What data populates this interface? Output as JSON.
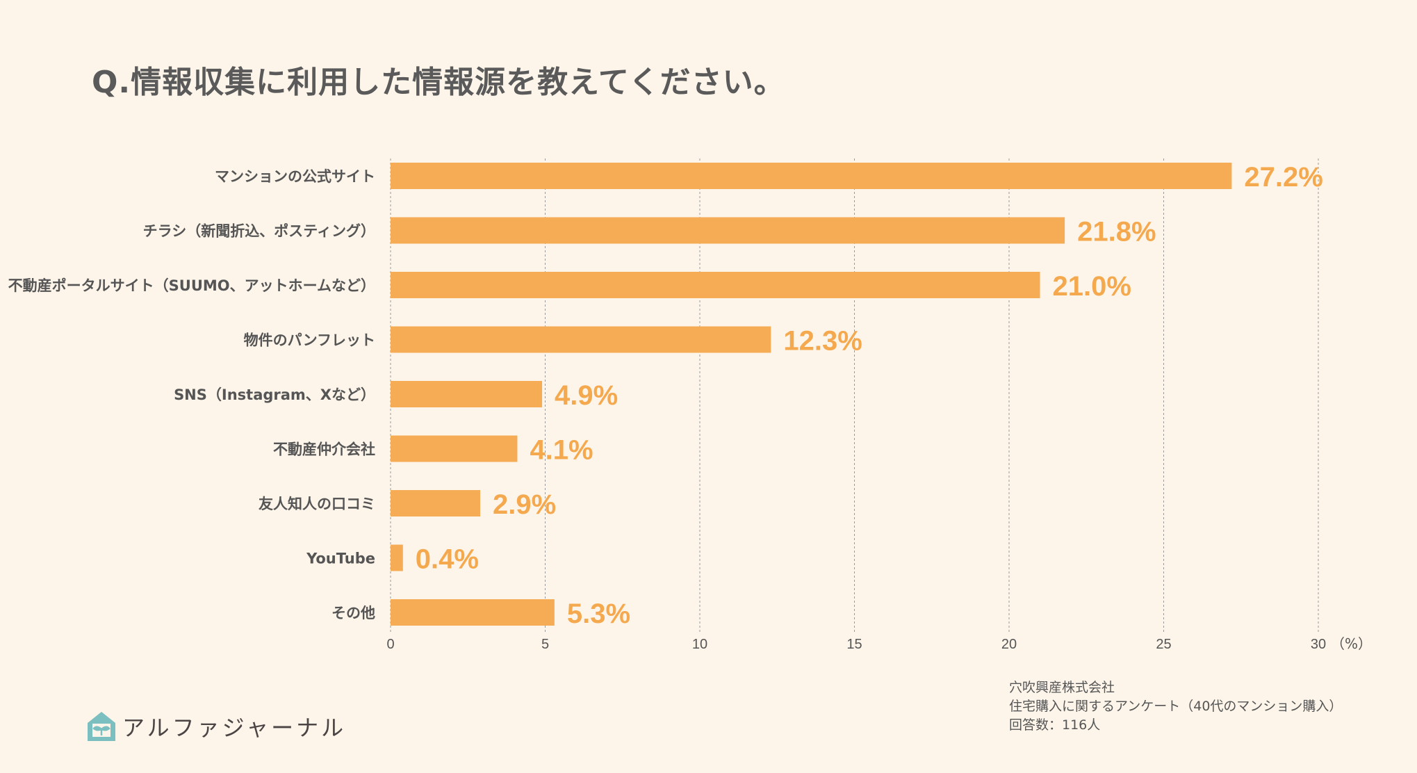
{
  "title": "Q.情報収集に利用した情報源を教えてください。",
  "chart_data": {
    "type": "bar",
    "orientation": "horizontal",
    "categories": [
      "マンションの公式サイト",
      "チラシ（新聞折込、ポスティング）",
      "不動産ポータルサイト（SUUMO、アットホームなど）",
      "物件のパンフレット",
      "SNS（Instagram、Xなど）",
      "不動産仲介会社",
      "友人知人の口コミ",
      "YouTube",
      "その他"
    ],
    "values": [
      27.2,
      21.8,
      21.0,
      12.3,
      4.9,
      4.1,
      2.9,
      0.4,
      5.3
    ],
    "data_labels": [
      "27.2%",
      "21.8%",
      "21.0%",
      "12.3%",
      "4.9%",
      "4.1%",
      "2.9%",
      "0.4%",
      "5.3%"
    ],
    "xlim": [
      0,
      30
    ],
    "ticks": [
      "0",
      "5",
      "10",
      "15",
      "20",
      "25",
      "30"
    ],
    "xunit": "（%）",
    "grid": true,
    "bar_color": "#F5AC55",
    "label_color": "#F5A94F"
  },
  "source": {
    "line1": "穴吹興産株式会社",
    "line2": "住宅購入に関するアンケート（40代のマンション購入）",
    "line3": "回答数：116人"
  },
  "logo": {
    "text": "アルファジャーナル",
    "icon": "house-sprout-icon",
    "color": "#7BBFC0"
  }
}
